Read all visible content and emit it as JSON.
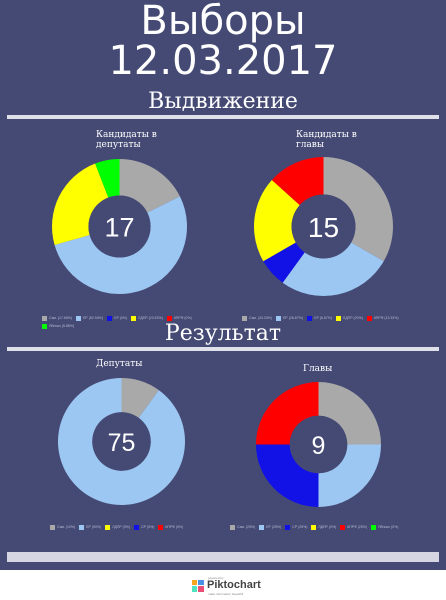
{
  "header": {
    "title_line1": "Выборы",
    "title_line2": "12.03.2017"
  },
  "sections": {
    "nomination": "Выдвижение",
    "result": "Результат"
  },
  "chart_data": [
    {
      "type": "pie",
      "title": "Кандидаты в депутаты",
      "center_label": "17",
      "series": [
        {
          "name": "Сам. (17.65%)",
          "value": 17.65,
          "color": "#a9a9a9"
        },
        {
          "name": "ЕР (52.94%)",
          "value": 52.94,
          "color": "#9cc7f2"
        },
        {
          "name": "СР (0%)",
          "value": 0,
          "color": "#1212e6"
        },
        {
          "name": "ЛДПР (23.53%)",
          "value": 23.53,
          "color": "#ffff00"
        },
        {
          "name": "КПРФ (0%)",
          "value": 0,
          "color": "#ff0000"
        },
        {
          "name": "Яблоко (5.88%)",
          "value": 5.88,
          "color": "#00ff00"
        }
      ]
    },
    {
      "type": "pie",
      "title": "Кандидаты в главы",
      "center_label": "15",
      "series": [
        {
          "name": "Сам. (33.33%)",
          "value": 33.33,
          "color": "#a9a9a9"
        },
        {
          "name": "ЕР (26.67%)",
          "value": 26.67,
          "color": "#9cc7f2"
        },
        {
          "name": "СР (6.67%)",
          "value": 6.67,
          "color": "#1212e6"
        },
        {
          "name": "ЛДПР (20%)",
          "value": 20,
          "color": "#ffff00"
        },
        {
          "name": "КПРФ (13.33%)",
          "value": 13.33,
          "color": "#ff0000"
        }
      ]
    },
    {
      "type": "pie",
      "title": "Депутаты",
      "center_label": "75",
      "series": [
        {
          "name": "Сам. (10%)",
          "value": 10,
          "color": "#a9a9a9"
        },
        {
          "name": "ЕР (90%)",
          "value": 90,
          "color": "#9cc7f2"
        },
        {
          "name": "ЛДПР (0%)",
          "value": 0,
          "color": "#ffff00"
        },
        {
          "name": "СР (0%)",
          "value": 0,
          "color": "#1212e6"
        },
        {
          "name": "КПРФ (0%)",
          "value": 0,
          "color": "#ff0000"
        }
      ]
    },
    {
      "type": "pie",
      "title": "Главы",
      "center_label": "9",
      "series": [
        {
          "name": "Сам. (25%)",
          "value": 25,
          "color": "#a9a9a9"
        },
        {
          "name": "ЕР (25%)",
          "value": 25,
          "color": "#9cc7f2"
        },
        {
          "name": "СР (25%)",
          "value": 25,
          "color": "#1212e6"
        },
        {
          "name": "ЛДПР (0%)",
          "value": 0,
          "color": "#ffff00"
        },
        {
          "name": "КПРФ (25%)",
          "value": 25,
          "color": "#ff0000"
        },
        {
          "name": "Яблоко (0%)",
          "value": 0,
          "color": "#00ff00"
        }
      ]
    }
  ],
  "footer": {
    "powered": "powered by",
    "brand": "Piktochart",
    "tagline": "make information beautiful"
  }
}
